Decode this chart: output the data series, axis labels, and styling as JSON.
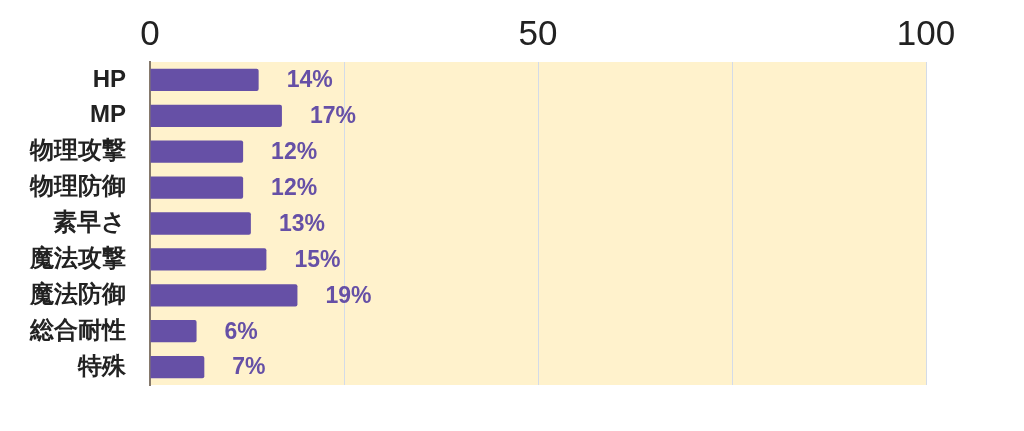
{
  "chart_data": {
    "type": "bar",
    "orientation": "horizontal",
    "categories": [
      "HP",
      "MP",
      "物理攻撃",
      "物理防御",
      "素早さ",
      "魔法攻撃",
      "魔法防御",
      "総合耐性",
      "特殊"
    ],
    "values": [
      14,
      17,
      12,
      12,
      13,
      15,
      19,
      6,
      7
    ],
    "value_labels": [
      "14%",
      "17%",
      "12%",
      "12%",
      "13%",
      "15%",
      "19%",
      "6%",
      "7%"
    ],
    "color": "#6650a6",
    "xlim": [
      0,
      100
    ],
    "xticks": [
      0,
      {
        "value": 25,
        "label": null
      },
      50,
      {
        "value": 75,
        "label": null
      },
      100
    ],
    "grid": "x"
  }
}
